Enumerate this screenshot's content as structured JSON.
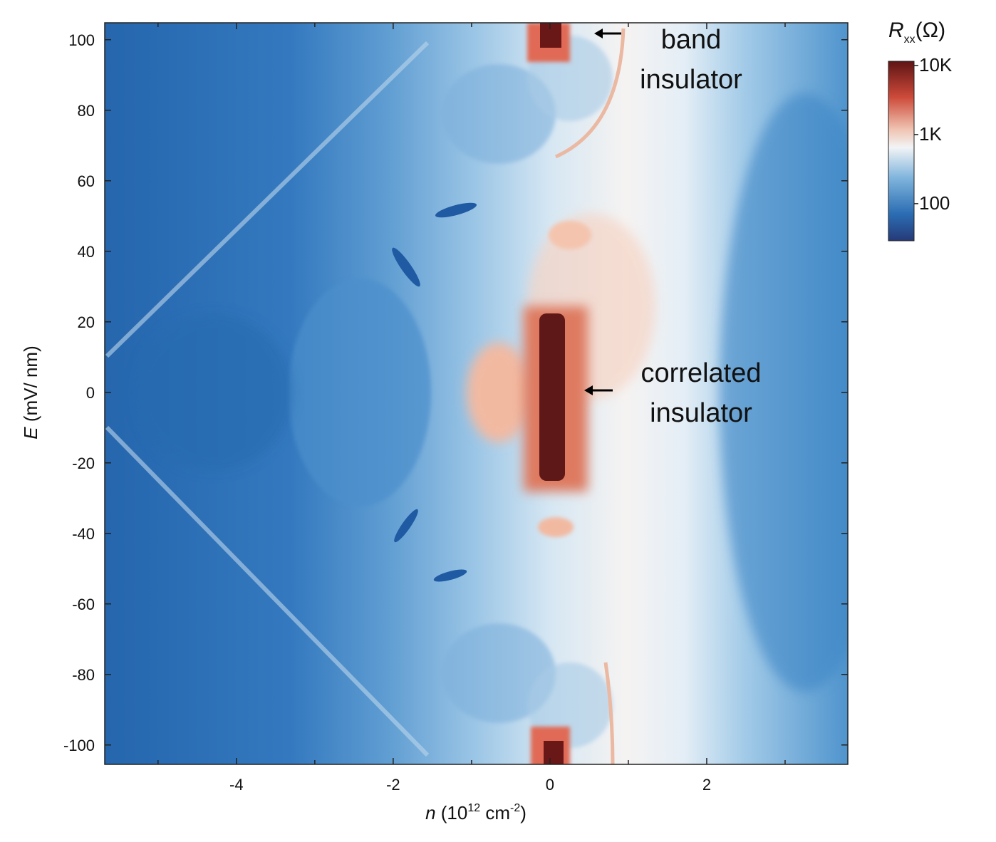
{
  "chart_data": {
    "type": "heatmap",
    "x_label": [
      "n",
      " (10",
      "12",
      " cm",
      "-2",
      ")"
    ],
    "y_label": [
      "E",
      " (mV/ nm)"
    ],
    "xlim": [
      -5.68,
      3.8
    ],
    "xticks": [
      -4,
      -2,
      0,
      2
    ],
    "xminor_ticks": [
      -5,
      -3,
      -1,
      1,
      3
    ],
    "ylim": [
      -105.5,
      104.8
    ],
    "yticks": [
      -100,
      -80,
      -60,
      -40,
      -20,
      0,
      20,
      40,
      60,
      80,
      100
    ],
    "colorbar": {
      "label": [
        "R",
        "xx",
        "(Ω)"
      ],
      "scale": "log",
      "clim": [
        29,
        11500
      ],
      "ticks": [
        {
          "value": 10000,
          "label": "10K"
        },
        {
          "value": 1000,
          "label": "1K"
        },
        100
      ]
    },
    "annotations": [
      {
        "lines": [
          "band",
          "insulator"
        ]
      },
      {
        "lines": [
          "correlated",
          "insulator"
        ]
      }
    ]
  }
}
